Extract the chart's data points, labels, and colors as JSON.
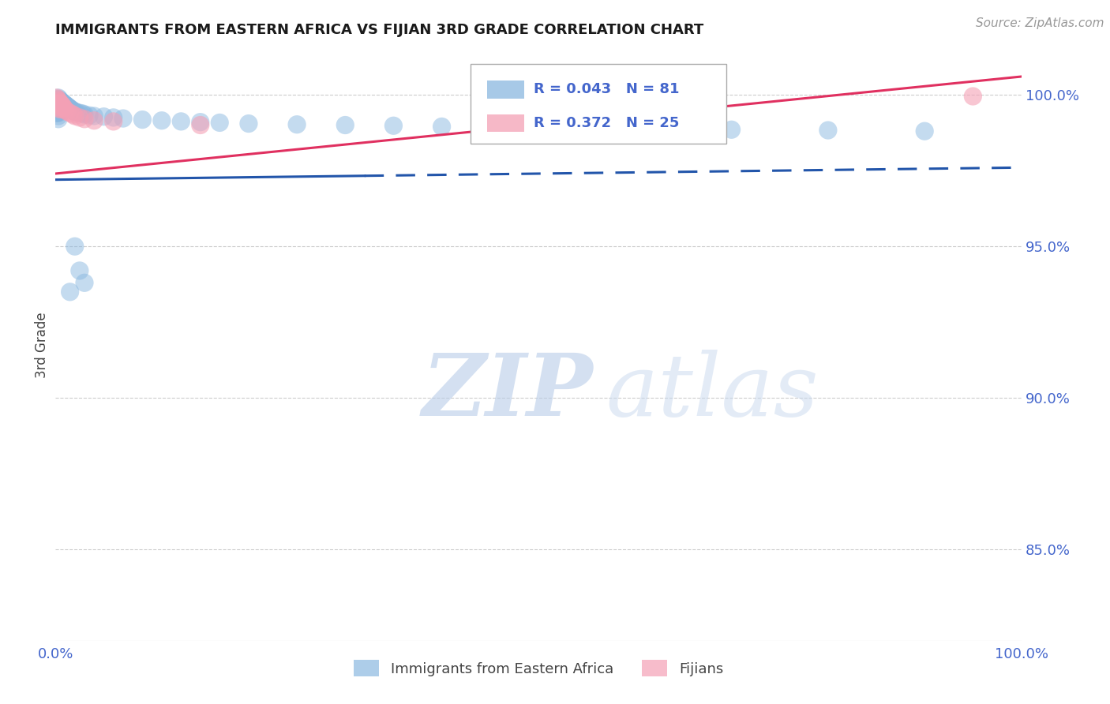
{
  "title": "IMMIGRANTS FROM EASTERN AFRICA VS FIJIAN 3RD GRADE CORRELATION CHART",
  "source": "Source: ZipAtlas.com",
  "ylabel": "3rd Grade",
  "legend_blue_label": "Immigrants from Eastern Africa",
  "legend_pink_label": "Fijians",
  "r_blue": 0.043,
  "n_blue": 81,
  "r_pink": 0.372,
  "n_pink": 25,
  "blue_color": "#8ab8e0",
  "pink_color": "#f4a0b5",
  "trend_blue_color": "#2255aa",
  "trend_pink_color": "#e03060",
  "grid_color": "#cccccc",
  "title_color": "#1a1a1a",
  "axis_label_color": "#444444",
  "right_axis_color": "#4466cc",
  "watermark_color": "#c8d8f0",
  "watermark_text": "ZIPatlas",
  "background_color": "#ffffff",
  "blue_scatter_x": [
    0.001,
    0.001,
    0.001,
    0.001,
    0.001,
    0.002,
    0.002,
    0.002,
    0.002,
    0.002,
    0.003,
    0.003,
    0.003,
    0.003,
    0.003,
    0.003,
    0.003,
    0.003,
    0.004,
    0.004,
    0.004,
    0.004,
    0.004,
    0.005,
    0.005,
    0.005,
    0.005,
    0.006,
    0.006,
    0.006,
    0.006,
    0.007,
    0.007,
    0.007,
    0.008,
    0.008,
    0.008,
    0.009,
    0.009,
    0.01,
    0.01,
    0.011,
    0.011,
    0.012,
    0.012,
    0.013,
    0.014,
    0.015,
    0.016,
    0.017,
    0.018,
    0.02,
    0.022,
    0.025,
    0.028,
    0.03,
    0.035,
    0.04,
    0.05,
    0.06,
    0.07,
    0.09,
    0.11,
    0.13,
    0.15,
    0.17,
    0.2,
    0.25,
    0.3,
    0.35,
    0.4,
    0.45,
    0.5,
    0.6,
    0.7,
    0.8,
    0.9,
    0.02,
    0.025,
    0.03,
    0.015
  ],
  "blue_scatter_y": [
    0.998,
    0.997,
    0.996,
    0.995,
    0.994,
    0.9985,
    0.9975,
    0.9965,
    0.9955,
    0.994,
    0.999,
    0.998,
    0.997,
    0.996,
    0.995,
    0.994,
    0.993,
    0.992,
    0.9985,
    0.9975,
    0.9965,
    0.9955,
    0.9945,
    0.998,
    0.997,
    0.996,
    0.995,
    0.9978,
    0.9968,
    0.9958,
    0.9948,
    0.9975,
    0.9965,
    0.9955,
    0.9972,
    0.9962,
    0.9952,
    0.997,
    0.996,
    0.9968,
    0.9958,
    0.9965,
    0.9955,
    0.9962,
    0.9952,
    0.996,
    0.9958,
    0.9955,
    0.9952,
    0.995,
    0.9948,
    0.9945,
    0.9942,
    0.994,
    0.9938,
    0.9935,
    0.9932,
    0.993,
    0.9928,
    0.9925,
    0.9922,
    0.9918,
    0.9915,
    0.9912,
    0.991,
    0.9908,
    0.9905,
    0.9902,
    0.99,
    0.9898,
    0.9895,
    0.9893,
    0.989,
    0.9888,
    0.9885,
    0.9883,
    0.988,
    0.95,
    0.942,
    0.938,
    0.935
  ],
  "pink_scatter_x": [
    0.001,
    0.001,
    0.002,
    0.002,
    0.003,
    0.003,
    0.004,
    0.004,
    0.005,
    0.005,
    0.006,
    0.007,
    0.008,
    0.009,
    0.01,
    0.012,
    0.015,
    0.018,
    0.02,
    0.025,
    0.03,
    0.04,
    0.06,
    0.15,
    0.95
  ],
  "pink_scatter_y": [
    0.999,
    0.997,
    0.9985,
    0.9965,
    0.998,
    0.996,
    0.9975,
    0.9955,
    0.9972,
    0.9952,
    0.9968,
    0.9965,
    0.996,
    0.9955,
    0.995,
    0.9945,
    0.994,
    0.9935,
    0.993,
    0.9925,
    0.992,
    0.9915,
    0.9912,
    0.99,
    0.9995
  ],
  "xlim": [
    0.0,
    1.0
  ],
  "ylim": [
    0.82,
    1.015
  ],
  "yticks_right": [
    0.85,
    0.9,
    0.95,
    1.0
  ],
  "ytick_right_labels": [
    "85.0%",
    "90.0%",
    "95.0%",
    "100.0%"
  ],
  "blue_trend_start_x": 0.0,
  "blue_trend_solid_end_x": 0.32,
  "blue_trend_end_x": 1.0,
  "blue_trend_start_y": 0.972,
  "blue_trend_end_y": 0.976,
  "pink_trend_start_x": 0.0,
  "pink_trend_end_x": 1.0,
  "pink_trend_start_y": 0.974,
  "pink_trend_end_y": 1.006
}
